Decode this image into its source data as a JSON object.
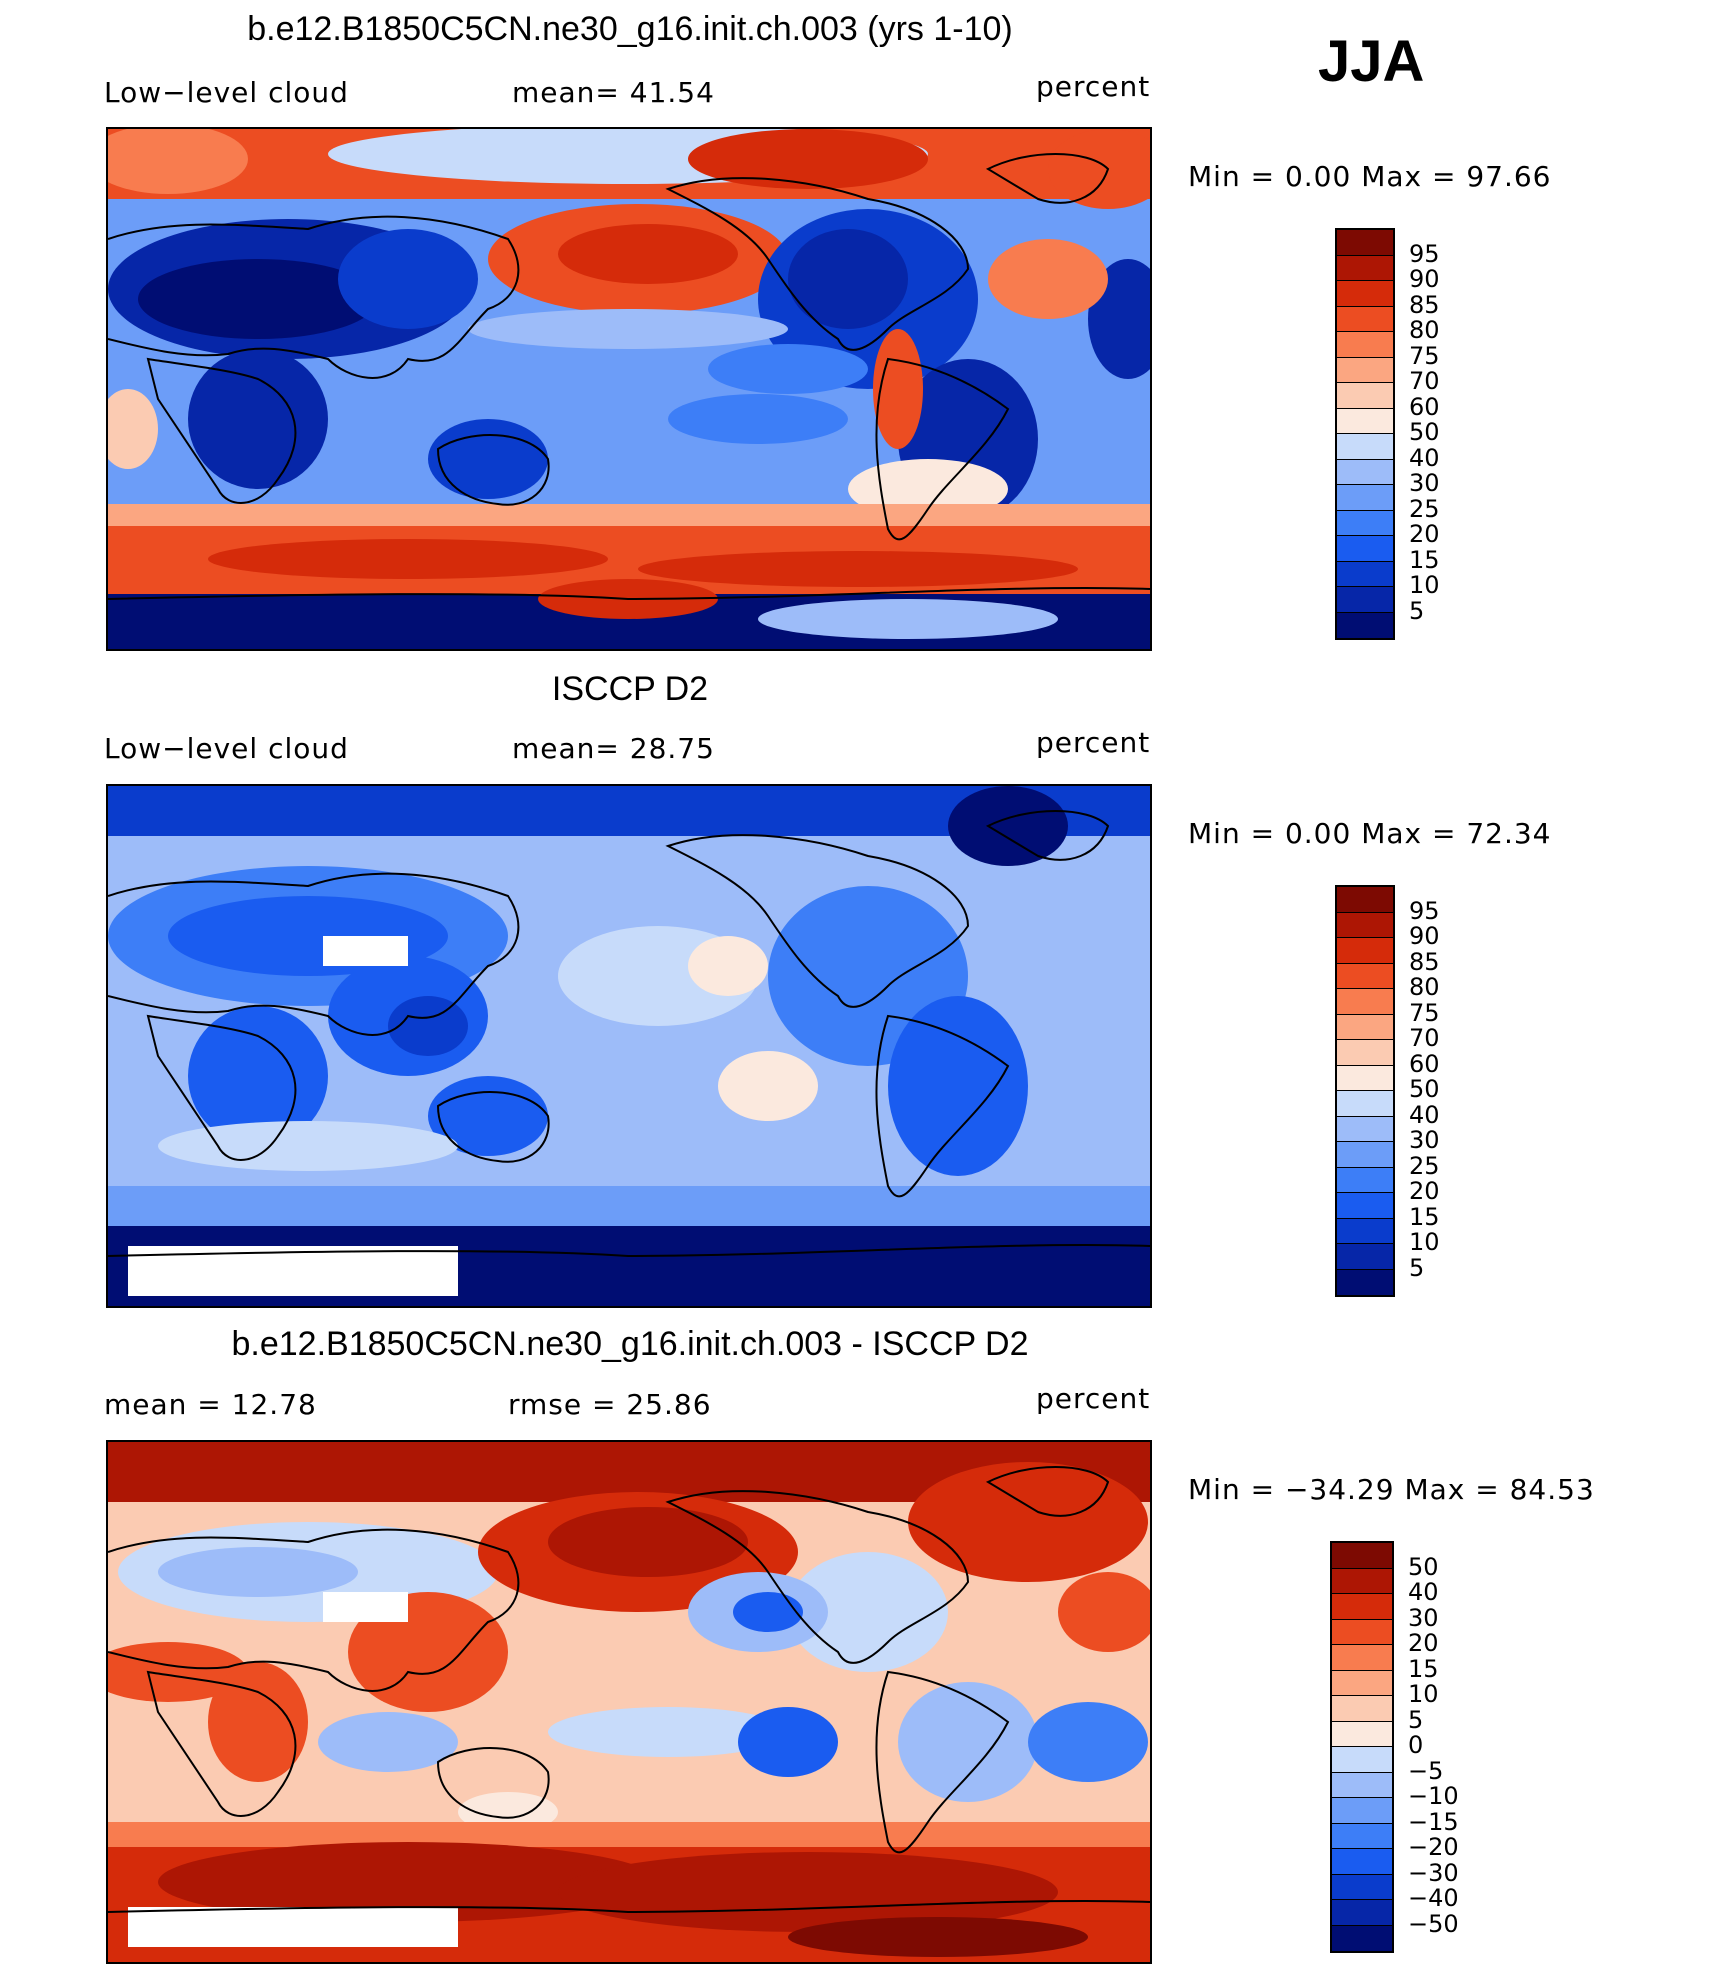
{
  "season": "JJA",
  "panels": [
    {
      "title": "b.e12.B1850C5CN.ne30_g16.init.ch.003 (yrs 1-10)",
      "left_label": "Low−level cloud",
      "mid_label": "mean=  41.54",
      "right_label": "percent",
      "stats": "Min =    0.00  Max =   97.66",
      "colorbar": {
        "colors": [
          "#000d73",
          "#0626a8",
          "#0a3ccc",
          "#1a5cf0",
          "#3d7ef7",
          "#6c9df8",
          "#9dbcf9",
          "#c7dbfa",
          "#fbe9de",
          "#fbcbb2",
          "#fba681",
          "#f87c4f",
          "#ec4d22",
          "#d52b0a",
          "#ad1604",
          "#7d0a02"
        ],
        "labels": [
          "5",
          "10",
          "15",
          "20",
          "25",
          "30",
          "40",
          "50",
          "60",
          "70",
          "75",
          "80",
          "85",
          "90",
          "95"
        ]
      }
    },
    {
      "title": "ISCCP D2",
      "left_label": "Low−level cloud",
      "mid_label": "mean=  28.75",
      "right_label": "percent",
      "stats": "Min =    0.00  Max =   72.34",
      "colorbar": {
        "colors": [
          "#000d73",
          "#0626a8",
          "#0a3ccc",
          "#1a5cf0",
          "#3d7ef7",
          "#6c9df8",
          "#9dbcf9",
          "#c7dbfa",
          "#fbe9de",
          "#fbcbb2",
          "#fba681",
          "#f87c4f",
          "#ec4d22",
          "#d52b0a",
          "#ad1604",
          "#7d0a02"
        ],
        "labels": [
          "5",
          "10",
          "15",
          "20",
          "25",
          "30",
          "40",
          "50",
          "60",
          "70",
          "75",
          "80",
          "85",
          "90",
          "95"
        ]
      }
    },
    {
      "title": "b.e12.B1850C5CN.ne30_g16.init.ch.003 - ISCCP D2",
      "left_label": "mean =    12.78",
      "mid_label": "rmse =    25.86",
      "right_label": "percent",
      "stats": "Min = −34.29  Max =   84.53",
      "colorbar": {
        "colors": [
          "#000d73",
          "#0626a8",
          "#0a3ccc",
          "#1a5cf0",
          "#3d7ef7",
          "#6c9df8",
          "#9dbcf9",
          "#c7dbfa",
          "#fbe9de",
          "#fbcbb2",
          "#fba681",
          "#f87c4f",
          "#ec4d22",
          "#d52b0a",
          "#ad1604",
          "#7d0a02"
        ],
        "labels": [
          "−50",
          "−40",
          "−30",
          "−20",
          "−15",
          "−10",
          "−5",
          "0",
          "5",
          "10",
          "15",
          "20",
          "30",
          "40",
          "50"
        ]
      }
    }
  ]
}
